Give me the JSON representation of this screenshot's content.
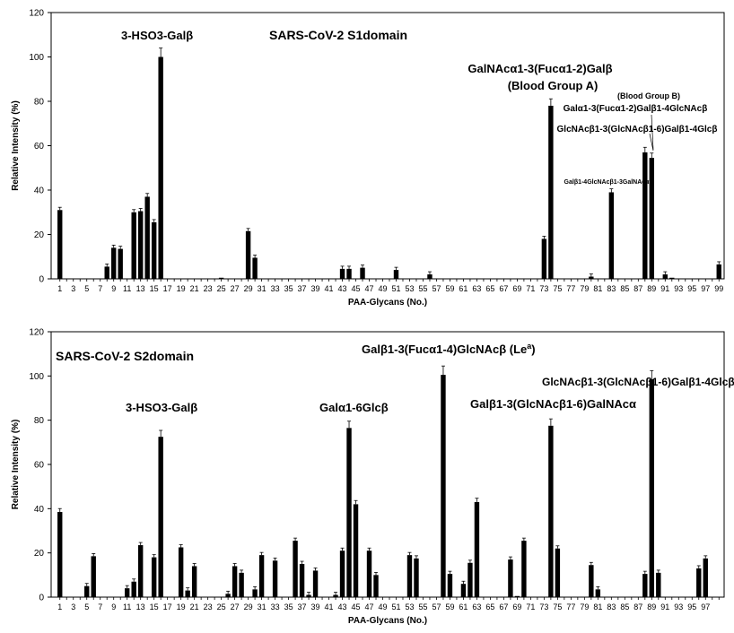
{
  "chart_data": [
    {
      "type": "bar",
      "title": "SARS-CoV-2 S1domain",
      "xlabel": "PAA-Glycans (No.)",
      "ylabel": "Relative Intensity (%)",
      "ylim": [
        0,
        120
      ],
      "yticks": [
        0,
        20,
        40,
        60,
        80,
        100,
        120
      ],
      "x": [
        1,
        2,
        3,
        4,
        5,
        6,
        7,
        8,
        9,
        10,
        11,
        12,
        13,
        14,
        15,
        16,
        17,
        18,
        19,
        20,
        21,
        22,
        23,
        24,
        25,
        26,
        27,
        28,
        29,
        30,
        31,
        32,
        33,
        34,
        35,
        36,
        37,
        38,
        39,
        40,
        41,
        42,
        43,
        44,
        45,
        46,
        47,
        48,
        49,
        50,
        51,
        52,
        53,
        54,
        55,
        56,
        57,
        58,
        59,
        60,
        61,
        62,
        63,
        64,
        65,
        66,
        67,
        68,
        69,
        70,
        71,
        72,
        73,
        74,
        75,
        76,
        77,
        78,
        79,
        80,
        81,
        82,
        83,
        84,
        85,
        86,
        87,
        88,
        89,
        90,
        91,
        92,
        93,
        94,
        95,
        96,
        97,
        98,
        99
      ],
      "values": [
        31,
        0,
        0,
        0,
        0,
        0,
        0,
        5.5,
        14,
        13.5,
        0,
        30,
        30.5,
        37,
        25.5,
        100,
        0,
        0,
        0,
        0,
        0,
        0,
        0,
        0,
        0.5,
        0,
        0,
        0,
        21.5,
        9.5,
        0,
        0,
        0,
        0,
        0,
        0,
        0,
        0,
        0,
        0,
        0,
        0,
        4.5,
        4.5,
        0,
        5,
        0,
        0,
        0,
        0,
        4,
        0,
        0,
        0,
        0,
        2,
        0,
        0,
        0,
        0,
        0,
        0,
        0,
        0,
        0,
        0,
        0,
        0,
        0,
        0,
        0,
        0,
        18,
        78,
        0,
        0,
        0,
        0,
        0,
        1,
        0,
        0,
        39,
        0,
        0,
        0,
        0,
        57,
        54.5,
        0,
        2,
        0.5,
        0,
        0,
        0,
        0,
        0,
        0,
        6.5
      ],
      "xtick_labels": [
        "1",
        "3",
        "5",
        "7",
        "9",
        "11",
        "13",
        "15",
        "17",
        "19",
        "21",
        "23",
        "25",
        "27",
        "29",
        "31",
        "33",
        "35",
        "37",
        "39",
        "41",
        "43",
        "45",
        "47",
        "49",
        "51",
        "53",
        "55",
        "57",
        "59",
        "61",
        "63",
        "65",
        "67",
        "69",
        "71",
        "73",
        "75",
        "77",
        "79",
        "81",
        "83",
        "85",
        "87",
        "89",
        "91",
        "93",
        "95",
        "97",
        "99"
      ],
      "annotations": [
        {
          "text": "3-HSO3-Galβ",
          "at_x": 16
        },
        {
          "text": "GalNAcα1-3(Fucα1-2)Galβ",
          "at_x": 75
        },
        {
          "text": "(Blood Group A)",
          "at_x": 75
        },
        {
          "text": "(Blood Group B)",
          "at_x": 90
        },
        {
          "text": "Galα1-3(Fucα1-2)Galβ1-4GlcNAcβ",
          "at_x": 90
        },
        {
          "text": "GlcNAcβ1-3(GlcNAcβ1-6)Galβ1-4Glcβ",
          "at_x": 89
        },
        {
          "text": "Galβ1-4GlcNAcβ1-3GalNAcα",
          "at_x": 84
        }
      ]
    },
    {
      "type": "bar",
      "title": "SARS-CoV-2 S2domain",
      "xlabel": "PAA-Glycans (No.)",
      "ylabel": "Relative Intensity (%)",
      "ylim": [
        0,
        120
      ],
      "yticks": [
        0,
        20,
        40,
        60,
        80,
        100,
        120
      ],
      "x": [
        1,
        2,
        3,
        4,
        5,
        6,
        7,
        8,
        9,
        10,
        11,
        12,
        13,
        14,
        15,
        16,
        17,
        18,
        19,
        20,
        21,
        22,
        23,
        24,
        25,
        26,
        27,
        28,
        29,
        30,
        31,
        32,
        33,
        34,
        35,
        36,
        37,
        38,
        39,
        40,
        41,
        42,
        43,
        44,
        45,
        46,
        47,
        48,
        49,
        50,
        51,
        52,
        53,
        54,
        55,
        56,
        57,
        58,
        59,
        60,
        61,
        62,
        63,
        64,
        65,
        66,
        67,
        68,
        69,
        70,
        71,
        72,
        73,
        74,
        75,
        76,
        77,
        78,
        79,
        80,
        81,
        82,
        83,
        84,
        85,
        86,
        87,
        88,
        89,
        90,
        91,
        92,
        93,
        94,
        95,
        96,
        97,
        98,
        99
      ],
      "values": [
        38.5,
        0,
        0,
        0,
        5,
        18.5,
        0,
        0,
        0,
        0,
        4,
        7,
        23.5,
        0,
        18,
        72.5,
        0,
        0,
        22.5,
        3,
        14,
        0,
        0,
        0,
        0,
        1.5,
        14,
        11,
        0,
        3.5,
        19,
        0,
        16.5,
        0,
        0,
        25.5,
        15,
        1,
        12,
        0,
        0,
        1,
        21,
        76.5,
        42,
        0,
        21,
        10,
        0,
        0,
        0,
        0,
        19,
        17.5,
        0,
        0,
        0,
        100.5,
        10.5,
        0,
        6,
        15.5,
        43,
        0,
        0,
        0,
        0,
        17,
        0.5,
        25.5,
        0,
        0,
        0,
        77.5,
        22,
        0,
        0,
        0,
        0,
        14.5,
        3.5,
        0,
        0,
        0,
        0,
        0,
        0,
        10.5,
        98.5,
        11,
        0,
        0,
        0,
        0,
        0,
        13,
        17.5,
        0,
        0
      ],
      "xtick_labels": [
        "1",
        "3",
        "5",
        "7",
        "9",
        "11",
        "13",
        "15",
        "17",
        "19",
        "21",
        "23",
        "25",
        "27",
        "29",
        "31",
        "33",
        "35",
        "37",
        "39",
        "41",
        "43",
        "45",
        "47",
        "49",
        "51",
        "53",
        "55",
        "57",
        "59",
        "61",
        "63",
        "65",
        "67",
        "69",
        "71",
        "73",
        "75",
        "77",
        "79",
        "81",
        "83",
        "85",
        "87",
        "89",
        "91",
        "93",
        "95",
        "97"
      ],
      "annotations": [
        {
          "text": "3-HSO3-Galβ",
          "at_x": 16
        },
        {
          "text": "Galα1-6Glcβ",
          "at_x": 44
        },
        {
          "text": "Galβ1-3(Fucα1-4)GlcNAcβ (Le",
          "superscript": "a",
          "closing": ")",
          "at_x": 58
        },
        {
          "text": "Galβ1-3(GlcNAcβ1-6)GalNAcα",
          "at_x": 74
        },
        {
          "text": "GlcNAcβ1-3(GlcNAcβ1-6)Galβ1-4Glcβ",
          "at_x": 89
        }
      ]
    }
  ]
}
